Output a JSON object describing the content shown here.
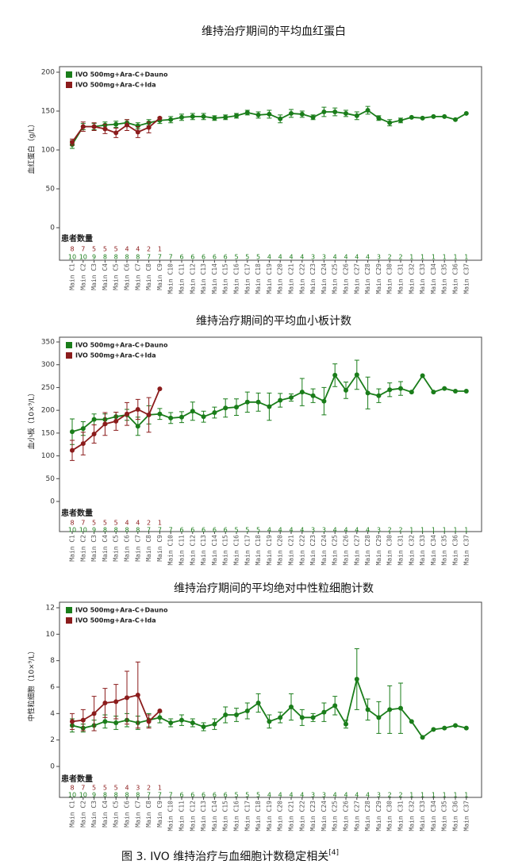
{
  "chart_data": [
    {
      "type": "line",
      "title": "维持治疗期间的平均血红蛋白",
      "y_label": "血红蛋白（g/L）",
      "count_label": "患者数量",
      "categories": [
        "Main C1",
        "Main C2",
        "Main C3",
        "Main C4",
        "Main C5",
        "Main C6",
        "Main C7",
        "Main C8",
        "Main C9",
        "Main C10",
        "Main C11",
        "Main C12",
        "Main C13",
        "Main C14",
        "Main C15",
        "Main C16",
        "Main C17",
        "Main C18",
        "Main C19",
        "Main C20",
        "Main C21",
        "Main C22",
        "Main C23",
        "Main C24",
        "Main C25",
        "Main C26",
        "Main C27",
        "Main C28",
        "Main C29",
        "Main C30",
        "Main C31",
        "Main C32",
        "Main C33",
        "Main C34",
        "Main C35",
        "Main C36",
        "Main C37"
      ],
      "ylim": [
        0,
        200
      ],
      "yticks": [
        0,
        50,
        100,
        150,
        200
      ],
      "series": [
        {
          "name": "IVO 500mg+Ara-C+Dauno",
          "color": "#1a7d1a",
          "values": [
            107,
            130,
            130,
            132,
            133,
            135,
            131,
            135,
            138,
            139,
            142,
            143,
            143,
            141,
            142,
            144,
            148,
            145,
            146,
            140,
            147,
            146,
            142,
            149,
            149,
            147,
            144,
            151,
            141,
            135,
            138,
            142,
            141,
            143,
            143,
            139,
            147
          ],
          "errors": [
            5,
            4,
            4,
            4,
            4,
            4,
            4,
            4,
            4,
            4,
            4,
            4,
            4,
            3,
            3,
            3,
            3,
            4,
            5,
            5,
            5,
            4,
            3,
            6,
            5,
            4,
            5,
            5,
            3,
            4,
            3,
            null,
            null,
            null,
            null,
            null,
            null
          ],
          "counts": [
            10,
            10,
            9,
            8,
            8,
            8,
            8,
            7,
            7,
            7,
            6,
            6,
            6,
            6,
            6,
            5,
            5,
            5,
            4,
            4,
            4,
            4,
            3,
            3,
            4,
            4,
            4,
            4,
            3,
            2,
            2,
            1,
            1,
            1,
            1,
            1,
            1
          ]
        },
        {
          "name": "IVO 500mg+Ara-C+Ida",
          "color": "#8b1c1c",
          "values": [
            110,
            130,
            130,
            127,
            122,
            132,
            123,
            129,
            141,
            null,
            null,
            null,
            null,
            null,
            null,
            null,
            null,
            null,
            null,
            null,
            null,
            null,
            null,
            null,
            null,
            null,
            null,
            null,
            null,
            null,
            null,
            null,
            null,
            null,
            null,
            null,
            null
          ],
          "errors": [
            4,
            6,
            5,
            6,
            6,
            7,
            7,
            7,
            null,
            null,
            null,
            null,
            null,
            null,
            null,
            null,
            null,
            null,
            null,
            null,
            null,
            null,
            null,
            null,
            null,
            null,
            null,
            null,
            null,
            null,
            null,
            null,
            null,
            null,
            null,
            null,
            null
          ],
          "counts": [
            8,
            7,
            5,
            5,
            5,
            4,
            4,
            2,
            1
          ]
        }
      ]
    },
    {
      "type": "line",
      "title": "维持治疗期间的平均血小板计数",
      "y_label": "血小板（10×⁹/L）",
      "count_label": "患者数量",
      "categories": [
        "Main C1",
        "Main C2",
        "Main C3",
        "Main C4",
        "Main C5",
        "Main C6",
        "Main C7",
        "Main C8",
        "Main C9",
        "Main C10",
        "Main C11",
        "Main C12",
        "Main C13",
        "Main C14",
        "Main C15",
        "Main C16",
        "Main C17",
        "Main C18",
        "Main C19",
        "Main C20",
        "Main C21",
        "Main C22",
        "Main C23",
        "Main C24",
        "Main C25",
        "Main C26",
        "Main C27",
        "Main C28",
        "Main C29",
        "Main C30",
        "Main C31",
        "Main C32",
        "Main C33",
        "Main C34",
        "Main C35",
        "Main C36",
        "Main C37"
      ],
      "ylim": [
        0,
        350
      ],
      "yticks": [
        0,
        50,
        100,
        150,
        200,
        250,
        300,
        350
      ],
      "series": [
        {
          "name": "IVO 500mg+Ara-C+Dauno",
          "color": "#1a7d1a",
          "values": [
            153,
            160,
            180,
            180,
            186,
            190,
            165,
            190,
            192,
            183,
            185,
            198,
            186,
            195,
            205,
            207,
            218,
            218,
            208,
            222,
            228,
            240,
            232,
            220,
            277,
            244,
            278,
            238,
            232,
            245,
            248,
            240,
            276,
            240,
            248,
            242,
            242
          ],
          "errors": [
            28,
            15,
            12,
            12,
            10,
            12,
            20,
            20,
            12,
            12,
            12,
            20,
            12,
            12,
            20,
            18,
            22,
            20,
            30,
            15,
            8,
            30,
            15,
            30,
            25,
            18,
            32,
            35,
            15,
            15,
            15,
            null,
            null,
            null,
            null,
            null,
            null
          ],
          "counts": [
            10,
            10,
            9,
            8,
            8,
            8,
            8,
            7,
            7,
            7,
            6,
            6,
            6,
            6,
            6,
            5,
            5,
            5,
            4,
            4,
            4,
            4,
            3,
            3,
            4,
            4,
            4,
            4,
            3,
            2,
            2,
            1,
            1,
            1,
            1,
            1,
            1
          ]
        },
        {
          "name": "IVO 500mg+Ara-C+Ida",
          "color": "#8b1c1c",
          "values": [
            112,
            127,
            148,
            170,
            176,
            192,
            202,
            190,
            247,
            null,
            null,
            null,
            null,
            null,
            null,
            null,
            null,
            null,
            null,
            null,
            null,
            null,
            null,
            null,
            null,
            null,
            null,
            null,
            null,
            null,
            null,
            null,
            null,
            null,
            null,
            null,
            null
          ],
          "errors": [
            22,
            25,
            20,
            25,
            20,
            25,
            22,
            38,
            null,
            null,
            null,
            null,
            null,
            null,
            null,
            null,
            null,
            null,
            null,
            null,
            null,
            null,
            null,
            null,
            null,
            null,
            null,
            null,
            null,
            null,
            null,
            null,
            null,
            null,
            null,
            null,
            null
          ],
          "counts": [
            8,
            7,
            5,
            5,
            5,
            4,
            4,
            2,
            1
          ]
        }
      ]
    },
    {
      "type": "line",
      "title": "维持治疗期间的平均绝对中性粒细胞计数",
      "y_label": "中性粒细胞（10×⁹/L）",
      "count_label": "患者数量",
      "categories": [
        "Main C1",
        "Main C2",
        "Main C3",
        "Main C4",
        "Main C5",
        "Main C6",
        "Main C7",
        "Main C8",
        "Main C9",
        "Main C10",
        "Main C11",
        "Main C12",
        "Main C13",
        "Main C14",
        "Main C15",
        "Main C16",
        "Main C17",
        "Main C18",
        "Main C19",
        "Main C20",
        "Main C21",
        "Main C22",
        "Main C23",
        "Main C24",
        "Main C25",
        "Main C26",
        "Main C27",
        "Main C28",
        "Main C29",
        "Main C30",
        "Main C31",
        "Main C32",
        "Main C33",
        "Main C34",
        "Main C35",
        "Main C36",
        "Main C37"
      ],
      "ylim": [
        0,
        12
      ],
      "yticks": [
        0,
        2,
        4,
        6,
        8,
        10,
        12
      ],
      "series": [
        {
          "name": "IVO 500mg+Ara-C+Dauno",
          "color": "#1a7d1a",
          "values": [
            3.1,
            2.9,
            3.1,
            3.4,
            3.3,
            3.5,
            3.3,
            3.5,
            3.7,
            3.3,
            3.5,
            3.3,
            3.0,
            3.2,
            3.9,
            3.9,
            4.2,
            4.8,
            3.4,
            3.7,
            4.5,
            3.7,
            3.7,
            4.1,
            4.6,
            3.2,
            6.6,
            4.3,
            3.7,
            4.3,
            4.4,
            3.4,
            2.2,
            2.8,
            2.9,
            3.1,
            2.9
          ],
          "errors": [
            0.5,
            0.3,
            0.4,
            0.5,
            0.5,
            0.5,
            0.5,
            0.5,
            0.4,
            0.3,
            0.4,
            0.3,
            0.3,
            0.4,
            0.6,
            0.5,
            0.6,
            0.7,
            0.5,
            0.4,
            1.0,
            0.6,
            0.3,
            0.7,
            0.7,
            0.3,
            2.3,
            0.8,
            1.2,
            1.8,
            1.9,
            null,
            null,
            null,
            null,
            null,
            null
          ],
          "counts": [
            10,
            10,
            9,
            8,
            8,
            8,
            8,
            7,
            7,
            7,
            6,
            6,
            6,
            6,
            6,
            5,
            5,
            5,
            4,
            4,
            4,
            4,
            3,
            3,
            4,
            4,
            4,
            4,
            3,
            2,
            2,
            1,
            1,
            1,
            1,
            1,
            1
          ]
        },
        {
          "name": "IVO 500mg+Ara-C+Ida",
          "color": "#8b1c1c",
          "values": [
            3.4,
            3.5,
            4.0,
            4.8,
            4.9,
            5.2,
            5.4,
            3.4,
            4.2,
            null,
            null,
            null,
            null,
            null,
            null,
            null,
            null,
            null,
            null,
            null,
            null,
            null,
            null,
            null,
            null,
            null,
            null,
            null,
            null,
            null,
            null,
            null,
            null,
            null,
            null,
            null,
            null
          ],
          "errors": [
            0.6,
            0.8,
            1.3,
            1.1,
            1.3,
            2.0,
            2.5,
            0.5,
            null,
            null,
            null,
            null,
            null,
            null,
            null,
            null,
            null,
            null,
            null,
            null,
            null,
            null,
            null,
            null,
            null,
            null,
            null,
            null,
            null,
            null,
            null,
            null,
            null,
            null,
            null,
            null,
            null
          ],
          "counts": [
            8,
            7,
            5,
            5,
            5,
            4,
            3,
            2,
            1
          ]
        }
      ]
    }
  ],
  "caption": {
    "text": "图 3. IVO 维持治疗与血细胞计数稳定相关",
    "ref": "[4]"
  }
}
